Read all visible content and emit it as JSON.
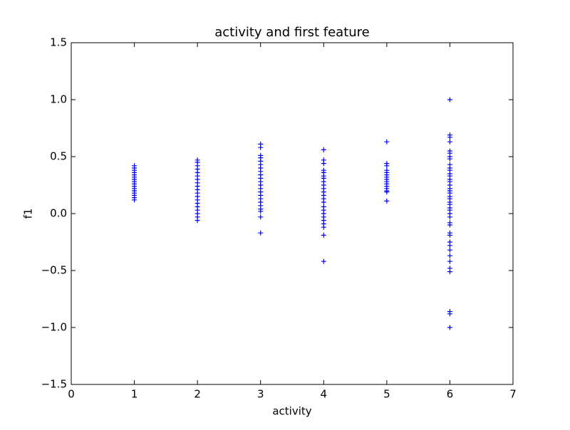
{
  "chart_data": {
    "type": "scatter",
    "title": "activity and first feature",
    "xlabel": "activity",
    "ylabel": "f1",
    "color": "#0000ff",
    "marker": "+",
    "x": [
      1,
      1,
      1,
      1,
      1,
      1,
      1,
      1,
      1,
      1,
      1,
      1,
      1,
      1,
      1,
      1,
      2,
      2,
      2,
      2,
      2,
      2,
      2,
      2,
      2,
      2,
      2,
      2,
      2,
      2,
      2,
      2,
      2,
      2,
      2,
      3,
      3,
      3,
      3,
      3,
      3,
      3,
      3,
      3,
      3,
      3,
      3,
      3,
      3,
      3,
      3,
      3,
      3,
      3,
      3,
      3,
      3,
      4,
      4,
      4,
      4,
      4,
      4,
      4,
      4,
      4,
      4,
      4,
      4,
      4,
      4,
      4,
      4,
      4,
      4,
      4,
      4,
      4,
      4,
      4,
      5,
      5,
      5,
      5,
      5,
      5,
      5,
      5,
      5,
      5,
      5,
      5,
      5,
      5,
      5,
      6,
      6,
      6,
      6,
      6,
      6,
      6,
      6,
      6,
      6,
      6,
      6,
      6,
      6,
      6,
      6,
      6,
      6,
      6,
      6,
      6,
      6,
      6,
      6,
      6,
      6,
      6,
      6,
      6,
      6,
      6,
      6,
      6,
      6,
      6,
      6,
      6,
      6,
      6,
      6,
      6
    ],
    "values": [
      0.12,
      0.14,
      0.16,
      0.18,
      0.2,
      0.22,
      0.24,
      0.26,
      0.28,
      0.3,
      0.32,
      0.34,
      0.36,
      0.38,
      0.4,
      0.42,
      -0.06,
      -0.03,
      0,
      0.03,
      0.06,
      0.09,
      0.12,
      0.15,
      0.18,
      0.21,
      0.24,
      0.27,
      0.3,
      0.33,
      0.36,
      0.39,
      0.42,
      0.45,
      0.47,
      -0.17,
      -0.03,
      0.02,
      0.04,
      0.07,
      0.1,
      0.13,
      0.16,
      0.19,
      0.22,
      0.25,
      0.28,
      0.31,
      0.34,
      0.37,
      0.4,
      0.43,
      0.46,
      0.49,
      0.51,
      0.58,
      0.61,
      -0.42,
      -0.19,
      -0.12,
      -0.09,
      -0.06,
      -0.03,
      0,
      0.03,
      0.06,
      0.1,
      0.13,
      0.16,
      0.19,
      0.22,
      0.25,
      0.28,
      0.31,
      0.33,
      0.36,
      0.38,
      0.44,
      0.47,
      0.56,
      0.11,
      0.19,
      0.2,
      0.22,
      0.24,
      0.26,
      0.28,
      0.3,
      0.32,
      0.34,
      0.36,
      0.38,
      0.42,
      0.44,
      0.63,
      -1.0,
      -0.88,
      -0.86,
      -0.51,
      -0.48,
      -0.42,
      -0.37,
      -0.32,
      -0.28,
      -0.25,
      -0.19,
      -0.17,
      -0.1,
      -0.08,
      -0.03,
      0,
      0.03,
      0.05,
      0.08,
      0.1,
      0.13,
      0.15,
      0.18,
      0.2,
      0.22,
      0.25,
      0.28,
      0.3,
      0.33,
      0.35,
      0.38,
      0.4,
      0.43,
      0.48,
      0.5,
      0.53,
      0.55,
      0.63,
      0.67,
      0.69,
      1.0
    ],
    "xlim": [
      0,
      7
    ],
    "xticks": [
      0,
      1,
      2,
      3,
      4,
      5,
      6,
      7
    ],
    "ylim": [
      -1.5,
      1.5
    ],
    "yticks": [
      {
        "value": -1.5,
        "label": "−1.5"
      },
      {
        "value": -1.0,
        "label": "−1.0"
      },
      {
        "value": -0.5,
        "label": "−0.5"
      },
      {
        "value": 0,
        "label": "0.0"
      },
      0.5,
      {
        "value": 1.0,
        "label": "1.0"
      },
      1.5
    ],
    "grid": false
  }
}
